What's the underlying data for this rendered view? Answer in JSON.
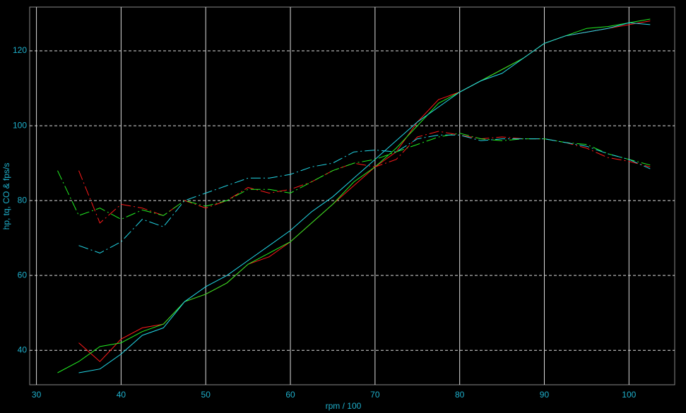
{
  "chart_data": {
    "type": "line",
    "xlabel": "rpm / 100",
    "ylabel": "hp, tq, CO & fps/s",
    "x": [
      32.5,
      35,
      37.5,
      40,
      42.5,
      45,
      47.5,
      50,
      52.5,
      55,
      57.5,
      60,
      62.5,
      65,
      67.5,
      70,
      72.5,
      75,
      77.5,
      80,
      82.5,
      85,
      87.5,
      90,
      92.5,
      95,
      97.5,
      100,
      102.5
    ],
    "series": [
      {
        "color": "#ff1a1a",
        "dash": "solid",
        "values": [
          null,
          42,
          37,
          43,
          46,
          47,
          53,
          55,
          58,
          63,
          65,
          69,
          74,
          79,
          84,
          89,
          93,
          101,
          107,
          109,
          112,
          115,
          118,
          122,
          124,
          125,
          126,
          127,
          128
        ]
      },
      {
        "color": "#22ee22",
        "dash": "solid",
        "values": [
          34,
          37,
          41,
          42,
          45,
          47,
          53,
          55,
          58,
          63,
          66,
          69,
          74,
          79,
          85,
          89,
          94,
          100,
          106,
          109,
          112,
          115,
          118,
          122,
          124,
          126,
          126.5,
          127.5,
          128.5
        ]
      },
      {
        "color": "#22d8e8",
        "dash": "solid",
        "values": [
          null,
          34,
          35,
          39,
          44,
          46,
          53,
          57,
          60,
          64,
          68,
          72,
          77,
          81,
          86,
          91,
          96,
          101,
          105,
          109,
          112,
          114,
          118,
          122,
          124,
          125,
          126,
          127.5,
          127
        ]
      },
      {
        "color": "#ff1a1a",
        "dash": "dashdot",
        "values": [
          null,
          88,
          74,
          79,
          78,
          76,
          80,
          78,
          80,
          83.5,
          82,
          83,
          85,
          88,
          90,
          89,
          91,
          97,
          98.5,
          97.5,
          96.5,
          97,
          96.5,
          96.5,
          95.5,
          94,
          91.5,
          90.5,
          89
        ]
      },
      {
        "color": "#22ee22",
        "dash": "dashdot",
        "values": [
          88,
          76,
          78,
          75,
          77.5,
          76,
          80,
          78.5,
          80,
          83,
          83,
          82,
          85,
          88,
          90,
          91,
          93,
          95,
          97,
          98,
          96.5,
          96,
          96.5,
          96.5,
          95.5,
          95,
          92.5,
          91,
          89.5
        ]
      },
      {
        "color": "#22d8e8",
        "dash": "dashdot",
        "values": [
          null,
          68,
          66,
          69,
          75,
          73,
          80,
          82,
          84,
          86,
          86,
          87,
          89,
          90,
          93,
          93.5,
          93,
          96.5,
          97.5,
          97.5,
          96,
          96.5,
          96.5,
          96.5,
          95.5,
          94.5,
          92.5,
          91,
          88.5
        ]
      }
    ],
    "xlim": [
      29.2,
      105.4
    ],
    "xticks": [
      30,
      40,
      50,
      60,
      70,
      80,
      90,
      100
    ],
    "ylim": [
      30.8,
      131.7
    ],
    "yticks": [
      40,
      60,
      80,
      100,
      120
    ],
    "grid": true
  }
}
